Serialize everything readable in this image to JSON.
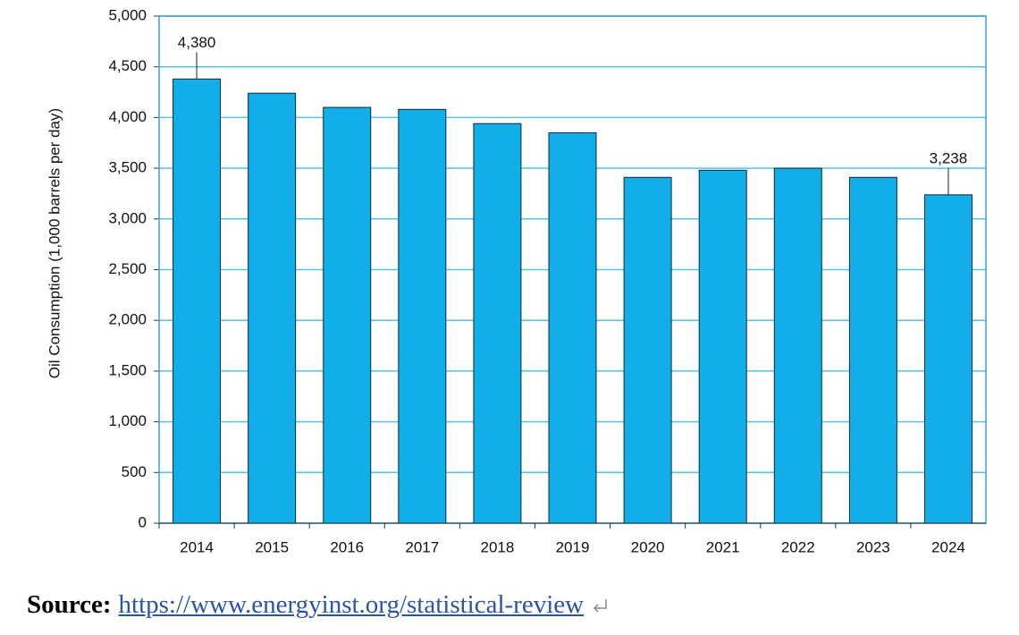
{
  "chart_data": {
    "type": "bar",
    "y_label": "Oil Consumption (1,000 barrels per day)",
    "categories": [
      "2014",
      "2015",
      "2016",
      "2017",
      "2018",
      "2019",
      "2020",
      "2021",
      "2022",
      "2023",
      "2024"
    ],
    "values": [
      4380,
      4240,
      4100,
      4080,
      3940,
      3850,
      3410,
      3480,
      3500,
      3410,
      3238
    ],
    "value_labels": [
      "4,380",
      null,
      null,
      null,
      null,
      null,
      null,
      null,
      null,
      null,
      "3,238"
    ],
    "color": "#12aee9",
    "ylim": [
      0,
      5000
    ],
    "yticks": [
      0,
      500,
      {
        "value": 1000,
        "label": "1,000"
      },
      {
        "value": 1500,
        "label": "1,500"
      },
      {
        "value": 2000,
        "label": "2,000"
      },
      {
        "value": 2500,
        "label": "2,500"
      },
      {
        "value": 3000,
        "label": "3,000"
      },
      {
        "value": 3500,
        "label": "3,500"
      },
      {
        "value": 4000,
        "label": "4,000"
      },
      {
        "value": 4500,
        "label": "4,500"
      },
      {
        "value": 5000,
        "label": "5,000"
      }
    ],
    "grid": true
  },
  "source": {
    "label": "Source:",
    "url": "https://www.energyinst.org/statistical-review"
  }
}
